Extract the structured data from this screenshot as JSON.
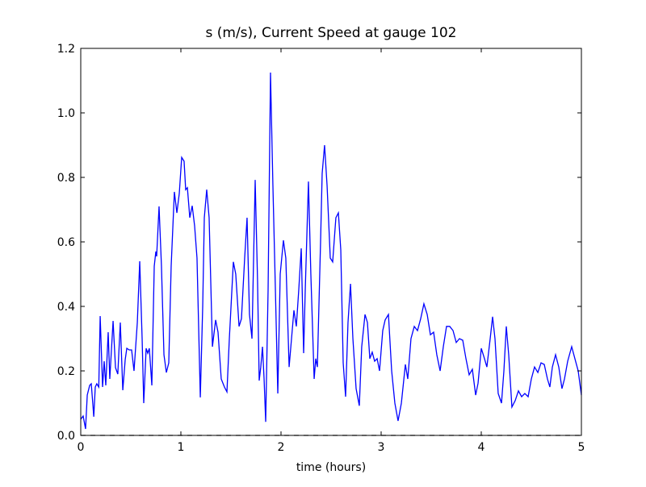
{
  "chart_data": {
    "type": "line",
    "title": "s (m/s), Current Speed at gauge 102",
    "xlabel": "time (hours)",
    "xlim": [
      0,
      5
    ],
    "ylim": [
      0,
      1.2
    ],
    "xticks": [
      0,
      1,
      2,
      3,
      4,
      5
    ],
    "yticks": [
      {
        "value": 0,
        "label": "0.0"
      },
      0.2,
      0.4,
      0.6,
      0.8,
      {
        "value": 1,
        "label": "1.0"
      },
      1.2
    ],
    "series": [
      {
        "color": "#0000ff",
        "x": [
          0,
          0.024,
          0.048,
          0.065,
          0.089,
          0.105,
          0.12,
          0.13,
          0.145,
          0.16,
          0.18,
          0.194,
          0.218,
          0.234,
          0.25,
          0.274,
          0.29,
          0.323,
          0.347,
          0.37,
          0.395,
          0.42,
          0.444,
          0.46,
          0.484,
          0.508,
          0.532,
          0.565,
          0.589,
          0.613,
          0.629,
          0.653,
          0.669,
          0.685,
          0.71,
          0.734,
          0.75,
          0.758,
          0.782,
          0.806,
          0.831,
          0.855,
          0.879,
          0.903,
          0.935,
          0.96,
          0.984,
          1.008,
          1.032,
          1.048,
          1.065,
          1.089,
          1.113,
          1.137,
          1.161,
          1.194,
          1.218,
          1.234,
          1.258,
          1.282,
          1.315,
          1.347,
          1.371,
          1.403,
          1.435,
          1.46,
          1.484,
          1.524,
          1.548,
          1.581,
          1.605,
          1.637,
          1.661,
          1.685,
          1.71,
          1.742,
          1.766,
          1.782,
          1.798,
          1.815,
          1.831,
          1.847,
          1.871,
          1.895,
          1.919,
          1.944,
          1.968,
          1.992,
          2.024,
          2.048,
          2.081,
          2.105,
          2.129,
          2.153,
          2.177,
          2.202,
          2.226,
          2.242,
          2.274,
          2.298,
          2.331,
          2.347,
          2.363,
          2.395,
          2.411,
          2.435,
          2.46,
          2.492,
          2.516,
          2.548,
          2.573,
          2.597,
          2.621,
          2.645,
          2.669,
          2.694,
          2.718,
          2.75,
          2.782,
          2.806,
          2.839,
          2.863,
          2.887,
          2.911,
          2.935,
          2.96,
          2.984,
          3.016,
          3.04,
          3.073,
          3.105,
          3.137,
          3.169,
          3.202,
          3.242,
          3.266,
          3.298,
          3.331,
          3.363,
          3.395,
          3.427,
          3.46,
          3.492,
          3.524,
          3.556,
          3.589,
          3.621,
          3.653,
          3.685,
          3.718,
          3.75,
          3.782,
          3.815,
          3.847,
          3.879,
          3.911,
          3.944,
          3.968,
          4.0,
          4.032,
          4.056,
          4.089,
          4.113,
          4.137,
          4.169,
          4.202,
          4.226,
          4.25,
          4.274,
          4.306,
          4.339,
          4.371,
          4.403,
          4.435,
          4.468,
          4.5,
          4.532,
          4.565,
          4.597,
          4.629,
          4.661,
          4.685,
          4.71,
          4.742,
          4.774,
          4.806,
          4.831,
          4.863,
          4.903,
          4.935,
          4.968,
          5.0
        ],
        "values": [
          0.05,
          0.06,
          0.02,
          0.125,
          0.155,
          0.16,
          0.1,
          0.058,
          0.15,
          0.16,
          0.15,
          0.37,
          0.15,
          0.23,
          0.155,
          0.32,
          0.175,
          0.355,
          0.21,
          0.19,
          0.35,
          0.14,
          0.235,
          0.27,
          0.265,
          0.265,
          0.2,
          0.35,
          0.54,
          0.3,
          0.1,
          0.27,
          0.255,
          0.27,
          0.155,
          0.525,
          0.57,
          0.555,
          0.71,
          0.525,
          0.25,
          0.195,
          0.225,
          0.525,
          0.755,
          0.69,
          0.75,
          0.862,
          0.85,
          0.762,
          0.768,
          0.675,
          0.712,
          0.65,
          0.55,
          0.118,
          0.4,
          0.675,
          0.762,
          0.675,
          0.275,
          0.358,
          0.32,
          0.175,
          0.15,
          0.135,
          0.3,
          0.538,
          0.5,
          0.338,
          0.362,
          0.55,
          0.675,
          0.375,
          0.3,
          0.792,
          0.475,
          0.17,
          0.212,
          0.275,
          0.175,
          0.042,
          0.45,
          1.125,
          0.775,
          0.45,
          0.13,
          0.5,
          0.605,
          0.55,
          0.212,
          0.3,
          0.388,
          0.338,
          0.45,
          0.58,
          0.255,
          0.45,
          0.787,
          0.5,
          0.175,
          0.238,
          0.212,
          0.6,
          0.812,
          0.9,
          0.775,
          0.55,
          0.538,
          0.675,
          0.69,
          0.575,
          0.225,
          0.12,
          0.35,
          0.47,
          0.3,
          0.145,
          0.092,
          0.275,
          0.375,
          0.35,
          0.238,
          0.258,
          0.23,
          0.238,
          0.2,
          0.325,
          0.358,
          0.375,
          0.2,
          0.1,
          0.045,
          0.1,
          0.22,
          0.175,
          0.3,
          0.338,
          0.325,
          0.362,
          0.408,
          0.375,
          0.312,
          0.32,
          0.25,
          0.2,
          0.275,
          0.338,
          0.338,
          0.325,
          0.288,
          0.3,
          0.295,
          0.238,
          0.188,
          0.205,
          0.125,
          0.162,
          0.27,
          0.238,
          0.212,
          0.3,
          0.368,
          0.3,
          0.13,
          0.1,
          0.2,
          0.338,
          0.25,
          0.088,
          0.108,
          0.138,
          0.12,
          0.13,
          0.12,
          0.175,
          0.212,
          0.195,
          0.225,
          0.22,
          0.175,
          0.15,
          0.212,
          0.25,
          0.212,
          0.145,
          0.175,
          0.23,
          0.275,
          0.238,
          0.2,
          0.125
        ]
      },
      {
        "color": "#000000",
        "dashed": true,
        "x": [
          0,
          5
        ],
        "values": [
          0,
          0
        ]
      }
    ]
  }
}
